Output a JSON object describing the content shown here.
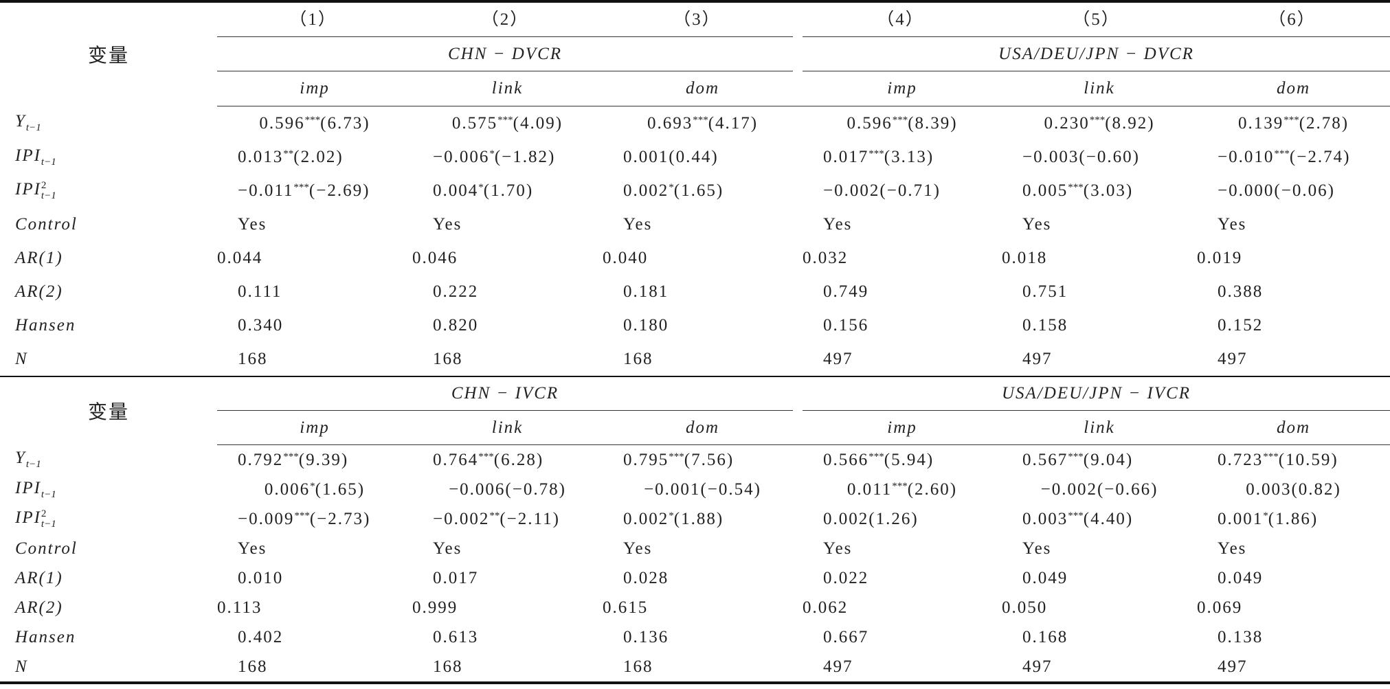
{
  "panels": [
    {
      "column_numbers": [
        "（1）",
        "（2）",
        "（3）",
        "（4）",
        "（5）",
        "（6）"
      ],
      "header_label": "变量",
      "groups": [
        "CHN − DVCR",
        "USA/DEU/JPN − DVCR"
      ],
      "subheaders": [
        "imp",
        "link",
        "dom",
        "imp",
        "link",
        "dom"
      ],
      "rows": [
        {
          "label": {
            "base": "Y",
            "sub": "t−1"
          },
          "cells": [
            "0.596***(6.73)",
            "0.575***(4.09)",
            "0.693***(4.17)",
            "0.596***(8.39)",
            "0.230***(8.92)",
            "0.139***(2.78)"
          ]
        },
        {
          "label": {
            "base": "IPI",
            "sub": "t−1"
          },
          "cells": [
            "0.013**(2.02)",
            "−0.006*(−1.82)",
            "0.001(0.44)",
            "0.017***(3.13)",
            "−0.003(−0.60)",
            "−0.010***(−2.74)"
          ]
        },
        {
          "label": {
            "base": "IPI",
            "sup": "2",
            "sub": "t−1"
          },
          "cells": [
            "−0.011***(−2.69)",
            "0.004*(1.70)",
            "0.002*(1.65)",
            "−0.002(−0.71)",
            "0.005***(3.03)",
            "−0.000(−0.06)"
          ]
        },
        {
          "label": "Control",
          "cells": [
            "Yes",
            "Yes",
            "Yes",
            "Yes",
            "Yes",
            "Yes"
          ]
        },
        {
          "label": "AR(1)",
          "cells": [
            "0.044",
            "0.046",
            "0.040",
            "0.032",
            "0.018",
            "0.019"
          ]
        },
        {
          "label": "AR(2)",
          "cells": [
            "0.111",
            "0.222",
            "0.181",
            "0.749",
            "0.751",
            "0.388"
          ]
        },
        {
          "label": "Hansen",
          "cells": [
            "0.340",
            "0.820",
            "0.180",
            "0.156",
            "0.158",
            "0.152"
          ]
        },
        {
          "label": "N",
          "cells": [
            "168",
            "168",
            "168",
            "497",
            "497",
            "497"
          ]
        }
      ]
    },
    {
      "header_label": "变量",
      "groups": [
        "CHN − IVCR",
        "USA/DEU/JPN − IVCR"
      ],
      "subheaders": [
        "imp",
        "link",
        "dom",
        "imp",
        "link",
        "dom"
      ],
      "rows": [
        {
          "label": {
            "base": "Y",
            "sub": "t−1"
          },
          "cells": [
            "0.792***(9.39)",
            "0.764***(6.28)",
            "0.795***(7.56)",
            "0.566***(5.94)",
            "0.567***(9.04)",
            "0.723***(10.59)"
          ]
        },
        {
          "label": {
            "base": "IPI",
            "sub": "t−1"
          },
          "cells": [
            "0.006*(1.65)",
            "−0.006(−0.78)",
            "−0.001(−0.54)",
            "0.011***(2.60)",
            "−0.002(−0.66)",
            "0.003(0.82)"
          ]
        },
        {
          "label": {
            "base": "IPI",
            "sup": "2",
            "sub": "t−1"
          },
          "cells": [
            "−0.009***(−2.73)",
            "−0.002**(−2.11)",
            "0.002*(1.88)",
            "0.002(1.26)",
            "0.003***(4.40)",
            "0.001*(1.86)"
          ]
        },
        {
          "label": "Control",
          "cells": [
            "Yes",
            "Yes",
            "Yes",
            "Yes",
            "Yes",
            "Yes"
          ]
        },
        {
          "label": "AR(1)",
          "cells": [
            "0.010",
            "0.017",
            "0.028",
            "0.022",
            "0.049",
            "0.049"
          ]
        },
        {
          "label": "AR(2)",
          "cells": [
            "0.113",
            "0.999",
            "0.615",
            "0.062",
            "0.050",
            "0.069"
          ]
        },
        {
          "label": "Hansen",
          "cells": [
            "0.402",
            "0.613",
            "0.136",
            "0.667",
            "0.168",
            "0.138"
          ]
        },
        {
          "label": "N",
          "cells": [
            "168",
            "168",
            "168",
            "497",
            "497",
            "497"
          ]
        }
      ]
    }
  ]
}
